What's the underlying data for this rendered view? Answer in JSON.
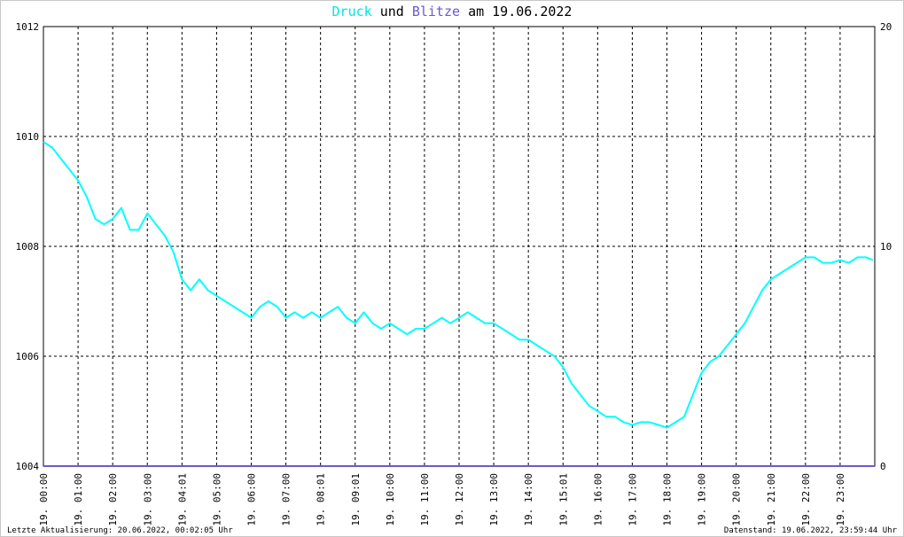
{
  "title": {
    "series1": "Druck",
    "middle": "und",
    "series2": "Blitze",
    "suffix": "am 19.06.2022"
  },
  "footer": {
    "left": "Letzte Aktualisierung: 20.06.2022, 00:02:05 Uhr",
    "right": "Datenstand: 19.06.2022, 23:59:44 Uhr"
  },
  "colors": {
    "druck": "#00ffff",
    "blitze": "#6a5acd",
    "grid": "#000000"
  },
  "chart_data": {
    "type": "line",
    "x_unit": "hours",
    "xlim": [
      0,
      24
    ],
    "ylim_left": [
      1004,
      1012
    ],
    "ylim_right": [
      0,
      20
    ],
    "y_left_ticks": [
      "1004",
      "1006",
      "1008",
      "1010",
      "1012"
    ],
    "y_right_ticks": [
      "0",
      "10",
      "20"
    ],
    "x_tick_labels": [
      "19. 00:00",
      "19. 01:00",
      "19. 02:00",
      "19. 03:00",
      "19. 04:01",
      "19. 05:00",
      "19. 06:00",
      "19. 07:00",
      "19. 08:01",
      "19. 09:01",
      "19. 10:00",
      "19. 11:00",
      "19. 12:00",
      "19. 13:00",
      "19. 14:00",
      "19. 15:01",
      "19. 16:00",
      "19. 17:00",
      "19. 18:00",
      "19. 19:00",
      "19. 20:00",
      "19. 21:00",
      "19. 22:00",
      "19. 23:00"
    ],
    "grid": true,
    "series": [
      {
        "name": "Druck",
        "axis": "left",
        "x": [
          0,
          0.25,
          0.5,
          0.75,
          1.0,
          1.25,
          1.5,
          1.75,
          2.0,
          2.25,
          2.5,
          2.75,
          3.0,
          3.25,
          3.5,
          3.75,
          4.0,
          4.25,
          4.5,
          4.75,
          5.0,
          5.25,
          5.5,
          5.75,
          6.0,
          6.25,
          6.5,
          6.75,
          7.0,
          7.25,
          7.5,
          7.75,
          8.0,
          8.25,
          8.5,
          8.75,
          9.0,
          9.25,
          9.5,
          9.75,
          10.0,
          10.25,
          10.5,
          10.75,
          11.0,
          11.25,
          11.5,
          11.75,
          12.0,
          12.25,
          12.5,
          12.75,
          13.0,
          13.25,
          13.5,
          13.75,
          14.0,
          14.25,
          14.5,
          14.75,
          15.0,
          15.25,
          15.5,
          15.75,
          16.0,
          16.25,
          16.5,
          16.75,
          17.0,
          17.25,
          17.5,
          17.75,
          18.0,
          18.25,
          18.5,
          18.75,
          19.0,
          19.25,
          19.5,
          19.75,
          20.0,
          20.25,
          20.5,
          20.75,
          21.0,
          21.25,
          21.5,
          21.75,
          22.0,
          22.25,
          22.5,
          22.75,
          23.0,
          23.25,
          23.5,
          23.75,
          23.95
        ],
        "values": [
          1009.9,
          1009.8,
          1009.6,
          1009.4,
          1009.2,
          1008.9,
          1008.5,
          1008.4,
          1008.5,
          1008.7,
          1008.3,
          1008.3,
          1008.6,
          1008.4,
          1008.2,
          1007.9,
          1007.4,
          1007.2,
          1007.4,
          1007.2,
          1007.1,
          1007.0,
          1006.9,
          1006.8,
          1006.7,
          1006.9,
          1007.0,
          1006.9,
          1006.7,
          1006.8,
          1006.7,
          1006.8,
          1006.7,
          1006.8,
          1006.9,
          1006.7,
          1006.6,
          1006.8,
          1006.6,
          1006.5,
          1006.6,
          1006.5,
          1006.4,
          1006.5,
          1006.5,
          1006.6,
          1006.7,
          1006.6,
          1006.7,
          1006.8,
          1006.7,
          1006.6,
          1006.6,
          1006.5,
          1006.4,
          1006.3,
          1006.3,
          1006.2,
          1006.1,
          1006.0,
          1005.8,
          1005.5,
          1005.3,
          1005.1,
          1005.0,
          1004.9,
          1004.9,
          1004.8,
          1004.75,
          1004.8,
          1004.8,
          1004.75,
          1004.7,
          1004.8,
          1004.9,
          1005.3,
          1005.7,
          1005.9,
          1006.0,
          1006.2,
          1006.4,
          1006.6,
          1006.9,
          1007.2,
          1007.4,
          1007.5,
          1007.6,
          1007.7,
          1007.8,
          1007.8,
          1007.7,
          1007.7,
          1007.75,
          1007.7,
          1007.8,
          1007.8,
          1007.75
        ]
      },
      {
        "name": "Blitze",
        "axis": "right",
        "x": [
          0,
          24
        ],
        "values": [
          0,
          0
        ]
      }
    ]
  }
}
